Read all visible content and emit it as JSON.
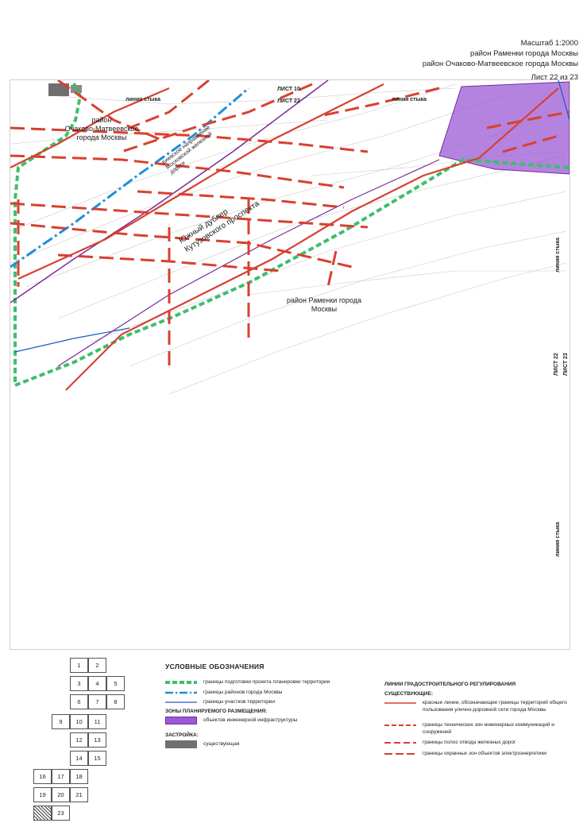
{
  "header": {
    "scale": "Масштаб 1:2000",
    "district1": "район Раменки города Москвы",
    "district2": "район Очаково-Матвеевское города Москвы",
    "sheet": "Лист 22 из 23"
  },
  "map": {
    "labels": {
      "ochakovo": "район\nОчаково-Матвеевское\nгорода Москвы",
      "ramenki": "район Раменки города\nМосквы",
      "dubler": "Южный дублер\nКутузовского проспекта",
      "kiev_railway": "Киевское направление\nМосковской железной\nдороги",
      "join_top_left": "линия стыка",
      "join_top_right": "линия стыка",
      "join_right_top": "линия стыка",
      "join_right_bottom": "линия стыка",
      "list10": "ЛИСТ 10",
      "list22_top": "ЛИСТ 22",
      "list22_right": "ЛИСТ 22",
      "list23_right": "ЛИСТ 23"
    },
    "colors": {
      "red_line": "#d84030",
      "dashed_red": "#d84030",
      "green_boundary": "#3cbf6a",
      "blue_districts": "#1e8fd8",
      "blue_parcels": "#1c5ac0",
      "purple_zone": "#9b59d6",
      "existing_building": "#6f6f6f",
      "rail": "#7a2a9a"
    }
  },
  "index": {
    "cells": [
      "1",
      "2",
      "3",
      "4",
      "5",
      "6",
      "7",
      "8",
      "9",
      "10",
      "11",
      "12",
      "13",
      "14",
      "15",
      "16",
      "17",
      "18",
      "19",
      "20",
      "21",
      "22",
      "23"
    ],
    "current": "22"
  },
  "legend": {
    "title": "УСЛОВНЫЕ ОБОЗНАЧЕНИЯ",
    "items": [
      {
        "icon": "green-dashed-line",
        "text": "границы подготовки проекта планировки территории"
      },
      {
        "icon": "blue-dashdot-line",
        "text": "границы районов города Москвы"
      },
      {
        "icon": "blue-thin-line",
        "text": "границы участков территории"
      }
    ],
    "zones_heading": "ЗОНЫ ПЛАНИРУЕМОГО РАЗМЕЩЕНИЯ:",
    "zones_item": "объектов инженерной инфраструктуры",
    "buildings_heading": "ЗАСТРОЙКА:",
    "buildings_item": "существующая",
    "reg_heading": "ЛИНИИ ГРАДОСТРОИТЕЛЬНОГО РЕГУЛИРОВАНИЯ",
    "existing_heading": "СУЩЕСТВУЮЩИЕ:",
    "reg_items": [
      "красные линии, обозначающие границы территорий общего пользования улично-дорожной сети города Москвы",
      "границы технических зон инженерных коммуникаций и сооружений",
      "границы полос отвода железных дорог",
      "границы охранных зон объектов электроэнергетики"
    ]
  }
}
